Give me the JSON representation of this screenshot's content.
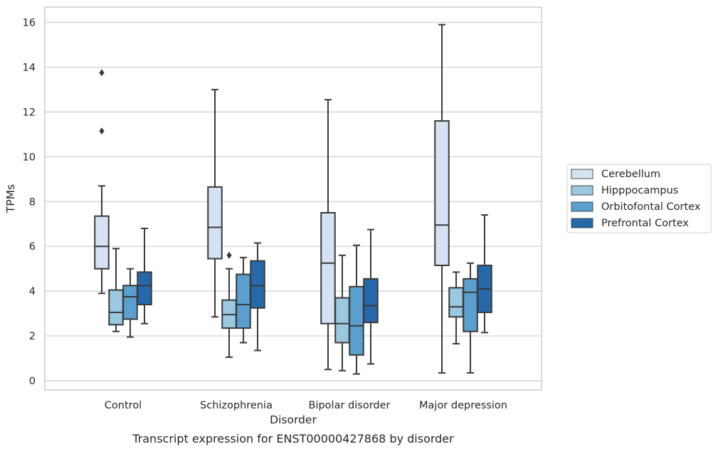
{
  "chart_data": {
    "type": "box",
    "caption": "Transcript expression for ENST00000427868 by disorder",
    "xlabel": "Disorder",
    "ylabel": "TPMs",
    "ylim": [
      -0.4,
      16.7
    ],
    "yticks": [
      0,
      2,
      4,
      6,
      8,
      10,
      12,
      14,
      16
    ],
    "grid": "horizontal",
    "legend_position": "right",
    "categories": [
      "Control",
      "Schizophrenia",
      "Bipolar disorder",
      "Major depression"
    ],
    "series": [
      {
        "name": "Cerebellum",
        "color": "#d4e2f1",
        "boxes": [
          {
            "whisker_low": 3.9,
            "q1": 5.0,
            "median": 6.0,
            "q3": 7.35,
            "whisker_high": 8.7,
            "outliers": [
              11.15,
              13.75
            ]
          },
          {
            "whisker_low": 2.85,
            "q1": 5.45,
            "median": 6.85,
            "q3": 8.65,
            "whisker_high": 13.0,
            "outliers": []
          },
          {
            "whisker_low": 0.5,
            "q1": 2.55,
            "median": 5.25,
            "q3": 7.5,
            "whisker_high": 12.55,
            "outliers": []
          },
          {
            "whisker_low": 0.35,
            "q1": 5.15,
            "median": 6.95,
            "q3": 11.6,
            "whisker_high": 15.9,
            "outliers": []
          }
        ]
      },
      {
        "name": "Hipppocampus",
        "color": "#9ac8e0",
        "boxes": [
          {
            "whisker_low": 2.2,
            "q1": 2.5,
            "median": 3.05,
            "q3": 4.05,
            "whisker_high": 5.9,
            "outliers": []
          },
          {
            "whisker_low": 1.05,
            "q1": 2.35,
            "median": 2.95,
            "q3": 3.6,
            "whisker_high": 5.0,
            "outliers": [
              5.6
            ]
          },
          {
            "whisker_low": 0.45,
            "q1": 1.7,
            "median": 2.55,
            "q3": 3.7,
            "whisker_high": 5.6,
            "outliers": []
          },
          {
            "whisker_low": 1.65,
            "q1": 2.85,
            "median": 3.3,
            "q3": 4.15,
            "whisker_high": 4.85,
            "outliers": []
          }
        ]
      },
      {
        "name": "Orbitofontal Cortex",
        "color": "#5a9fcf",
        "boxes": [
          {
            "whisker_low": 1.95,
            "q1": 2.75,
            "median": 3.75,
            "q3": 4.25,
            "whisker_high": 5.0,
            "outliers": []
          },
          {
            "whisker_low": 1.7,
            "q1": 2.35,
            "median": 3.4,
            "q3": 4.75,
            "whisker_high": 5.5,
            "outliers": []
          },
          {
            "whisker_low": 0.3,
            "q1": 1.15,
            "median": 2.45,
            "q3": 4.2,
            "whisker_high": 6.05,
            "outliers": []
          },
          {
            "whisker_low": 0.35,
            "q1": 2.2,
            "median": 3.95,
            "q3": 4.55,
            "whisker_high": 5.25,
            "outliers": []
          }
        ]
      },
      {
        "name": "Prefrontal Cortex",
        "color": "#2669ab",
        "boxes": [
          {
            "whisker_low": 2.55,
            "q1": 3.4,
            "median": 4.25,
            "q3": 4.85,
            "whisker_high": 6.8,
            "outliers": []
          },
          {
            "whisker_low": 1.35,
            "q1": 3.25,
            "median": 4.25,
            "q3": 5.35,
            "whisker_high": 6.15,
            "outliers": []
          },
          {
            "whisker_low": 0.75,
            "q1": 2.6,
            "median": 3.35,
            "q3": 4.55,
            "whisker_high": 6.75,
            "outliers": []
          },
          {
            "whisker_low": 2.15,
            "q1": 3.05,
            "median": 4.1,
            "q3": 5.15,
            "whisker_high": 7.4,
            "outliers": []
          }
        ]
      }
    ]
  }
}
